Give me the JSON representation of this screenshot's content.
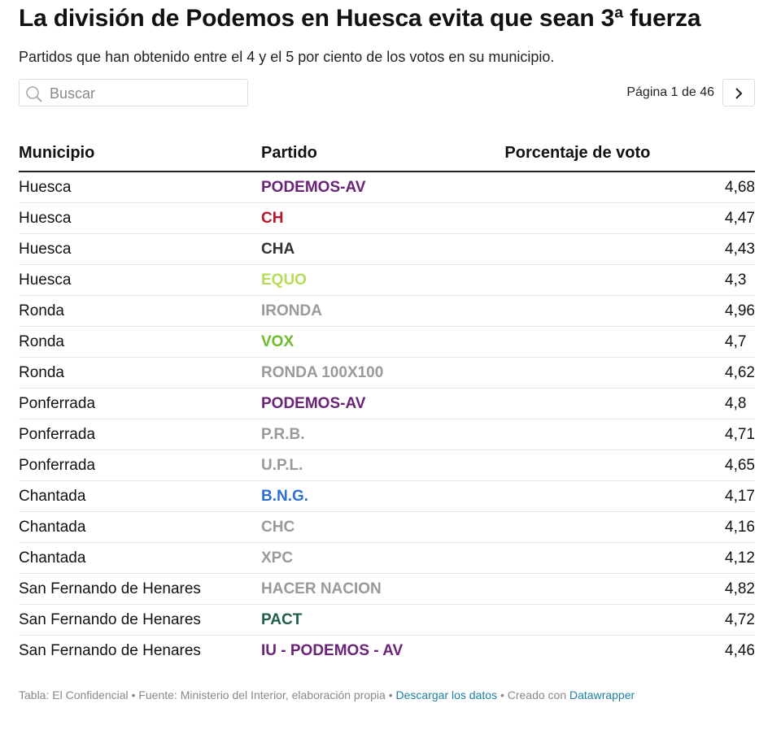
{
  "header": {
    "title": "La división de Podemos en Huesca evita que sean 3ª fuerza",
    "subtitle": "Partidos que han obtenido entre el 4 y el 5 por ciento de los votos en su municipio."
  },
  "controls": {
    "search_placeholder": "Buscar",
    "pagination": "Página 1 de 46"
  },
  "table": {
    "columns": [
      "Municipio",
      "Partido",
      "Porcentaje de voto"
    ],
    "rows": [
      {
        "municipio": "Huesca",
        "partido": "PODEMOS-AV",
        "color": "#6b2377",
        "porcentaje": "4,68"
      },
      {
        "municipio": "Huesca",
        "partido": "CH",
        "color": "#b5172b",
        "porcentaje": "4,47"
      },
      {
        "municipio": "Huesca",
        "partido": "CHA",
        "color": "#333333",
        "porcentaje": "4,43"
      },
      {
        "municipio": "Huesca",
        "partido": "EQUO",
        "color": "#b6dd5a",
        "porcentaje": "4,3"
      },
      {
        "municipio": "Ronda",
        "partido": "IRONDA",
        "color": "#9a9a9a",
        "porcentaje": "4,96"
      },
      {
        "municipio": "Ronda",
        "partido": "VOX",
        "color": "#6cbb2c",
        "porcentaje": "4,7"
      },
      {
        "municipio": "Ronda",
        "partido": "RONDA 100X100",
        "color": "#9a9a9a",
        "porcentaje": "4,62"
      },
      {
        "municipio": "Ponferrada",
        "partido": "PODEMOS-AV",
        "color": "#6b2377",
        "porcentaje": "4,8"
      },
      {
        "municipio": "Ponferrada",
        "partido": "P.R.B.",
        "color": "#9a9a9a",
        "porcentaje": "4,71"
      },
      {
        "municipio": "Ponferrada",
        "partido": "U.P.L.",
        "color": "#9a9a9a",
        "porcentaje": "4,65"
      },
      {
        "municipio": "Chantada",
        "partido": "B.N.G.",
        "color": "#2e6fd6",
        "porcentaje": "4,17"
      },
      {
        "municipio": "Chantada",
        "partido": "CHC",
        "color": "#9a9a9a",
        "porcentaje": "4,16"
      },
      {
        "municipio": "Chantada",
        "partido": "XPC",
        "color": "#9a9a9a",
        "porcentaje": "4,12"
      },
      {
        "municipio": "San Fernando de Henares",
        "partido": "HACER NACION",
        "color": "#9a9a9a",
        "porcentaje": "4,82"
      },
      {
        "municipio": "San Fernando de Henares",
        "partido": "PACT",
        "color": "#1f5e4c",
        "porcentaje": "4,72"
      },
      {
        "municipio": "San Fernando de Henares",
        "partido": "IU - PODEMOS - AV",
        "color": "#6b2377",
        "porcentaje": "4,46"
      }
    ]
  },
  "footer": {
    "separator": "•",
    "table_credit": "Tabla: El Confidencial",
    "source": "Fuente: Ministerio del Interior, elaboración propia",
    "download": "Descargar los datos",
    "created": "Creado con",
    "tool": "Datawrapper"
  }
}
